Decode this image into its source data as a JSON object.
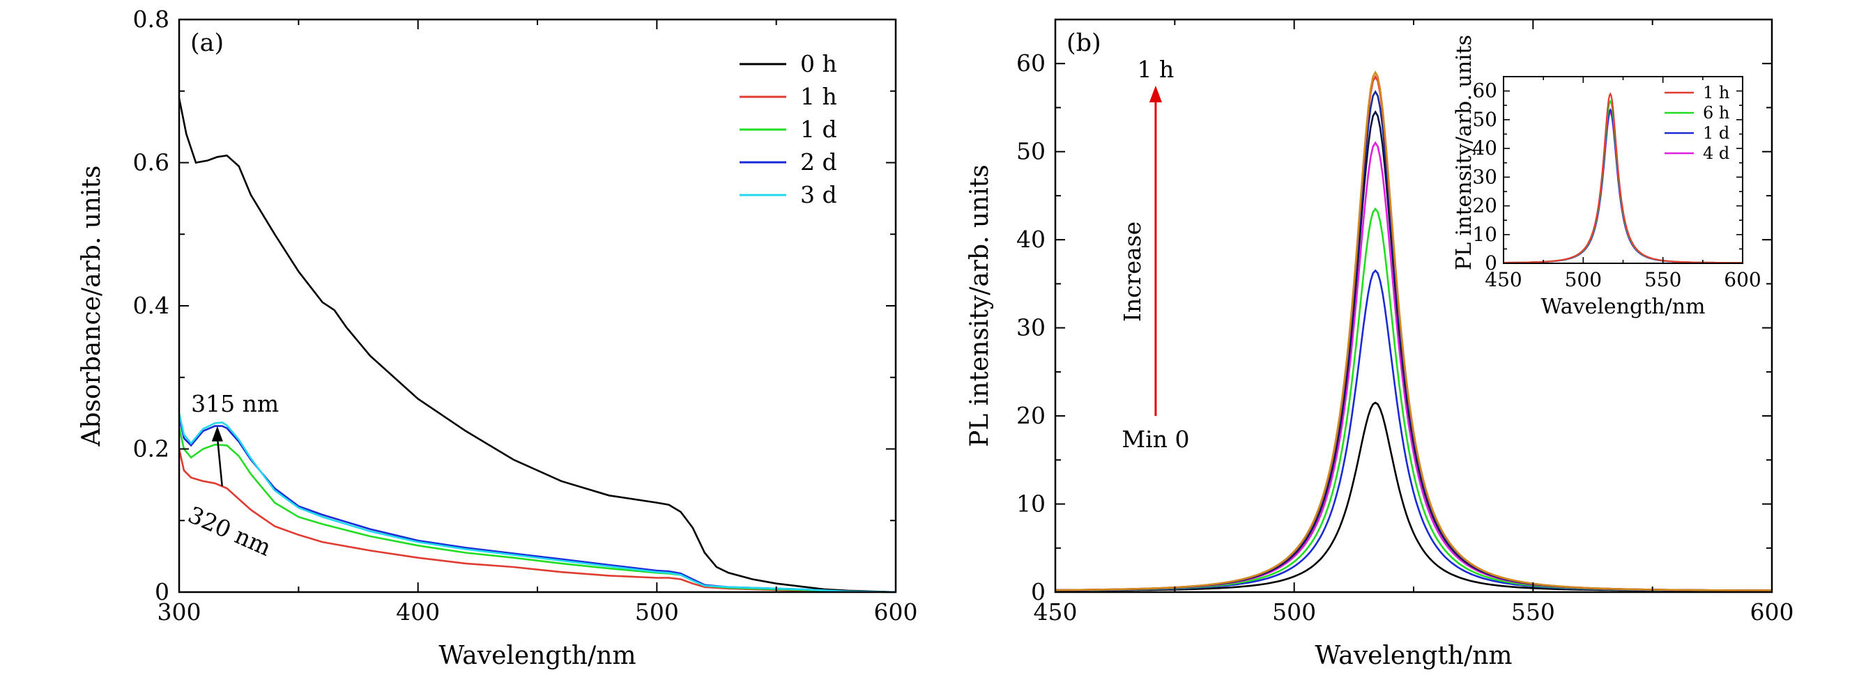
{
  "chart_data": [
    {
      "panel_label": "(a)",
      "type": "line",
      "xlabel": "Wavelength/nm",
      "ylabel": "Absorbance/arb. units",
      "xlim": [
        300,
        600
      ],
      "ylim": [
        0,
        0.8
      ],
      "xticks": [
        300,
        400,
        500,
        600
      ],
      "yticks": [
        0,
        0.2,
        0.4,
        0.6,
        0.8
      ],
      "ytick_labels": [
        "0",
        "0.2",
        "0.4",
        "0.6",
        "0.8"
      ],
      "legend_position": "top-right",
      "series": [
        {
          "name": "0 h",
          "color": "#000000",
          "x": [
            300,
            303,
            307,
            312,
            316,
            320,
            325,
            330,
            340,
            350,
            360,
            365,
            370,
            380,
            400,
            420,
            440,
            460,
            480,
            500,
            505,
            510,
            515,
            520,
            525,
            530,
            540,
            550,
            560,
            570,
            580,
            600
          ],
          "y": [
            0.69,
            0.64,
            0.6,
            0.603,
            0.608,
            0.61,
            0.595,
            0.555,
            0.5,
            0.448,
            0.405,
            0.394,
            0.37,
            0.33,
            0.27,
            0.225,
            0.185,
            0.155,
            0.135,
            0.125,
            0.122,
            0.112,
            0.09,
            0.055,
            0.035,
            0.027,
            0.018,
            0.012,
            0.008,
            0.004,
            0.002,
            0.0
          ]
        },
        {
          "name": "1 h",
          "color": "#e03c31",
          "x": [
            300,
            302,
            305,
            310,
            315,
            320,
            330,
            340,
            350,
            360,
            380,
            400,
            420,
            440,
            460,
            480,
            500,
            505,
            510,
            515,
            520,
            530,
            540,
            550,
            560,
            580,
            600
          ],
          "y": [
            0.2,
            0.17,
            0.16,
            0.155,
            0.152,
            0.145,
            0.115,
            0.092,
            0.08,
            0.07,
            0.058,
            0.048,
            0.04,
            0.035,
            0.028,
            0.023,
            0.02,
            0.02,
            0.018,
            0.012,
            0.007,
            0.005,
            0.004,
            0.003,
            0.002,
            0.001,
            0.0
          ]
        },
        {
          "name": "1 d",
          "color": "#22dd22",
          "x": [
            300,
            302,
            305,
            310,
            315,
            320,
            325,
            330,
            340,
            350,
            360,
            380,
            400,
            420,
            440,
            460,
            480,
            500,
            505,
            510,
            515,
            520,
            530,
            540,
            550,
            560,
            580,
            600
          ],
          "y": [
            0.23,
            0.2,
            0.188,
            0.2,
            0.206,
            0.205,
            0.19,
            0.165,
            0.125,
            0.105,
            0.095,
            0.078,
            0.065,
            0.055,
            0.048,
            0.04,
            0.033,
            0.027,
            0.026,
            0.024,
            0.016,
            0.009,
            0.006,
            0.005,
            0.004,
            0.003,
            0.001,
            0.0
          ]
        },
        {
          "name": "2 d",
          "color": "#1a2ad6",
          "x": [
            300,
            302,
            305,
            310,
            315,
            318,
            320,
            325,
            330,
            340,
            350,
            360,
            380,
            400,
            420,
            440,
            460,
            480,
            500,
            505,
            510,
            515,
            520,
            530,
            540,
            550,
            560,
            580,
            600
          ],
          "y": [
            0.245,
            0.215,
            0.205,
            0.225,
            0.232,
            0.232,
            0.229,
            0.21,
            0.185,
            0.145,
            0.12,
            0.108,
            0.088,
            0.072,
            0.062,
            0.054,
            0.046,
            0.038,
            0.03,
            0.029,
            0.026,
            0.018,
            0.01,
            0.007,
            0.006,
            0.005,
            0.004,
            0.001,
            0.0
          ]
        },
        {
          "name": "3 d",
          "color": "#22d8ee",
          "x": [
            300,
            302,
            305,
            310,
            315,
            318,
            320,
            325,
            330,
            340,
            350,
            360,
            380,
            400,
            420,
            440,
            460,
            480,
            500,
            505,
            510,
            515,
            520,
            530,
            540,
            550,
            560,
            580,
            600
          ],
          "y": [
            0.25,
            0.22,
            0.208,
            0.228,
            0.236,
            0.237,
            0.233,
            0.213,
            0.187,
            0.142,
            0.118,
            0.105,
            0.085,
            0.07,
            0.06,
            0.052,
            0.044,
            0.036,
            0.028,
            0.027,
            0.024,
            0.016,
            0.009,
            0.007,
            0.006,
            0.005,
            0.004,
            0.001,
            0.0
          ]
        }
      ],
      "annotations": [
        {
          "text": "315 nm",
          "x": 305,
          "y": 0.252
        },
        {
          "text": "320 nm",
          "x": 303,
          "y": 0.1
        }
      ],
      "arrow": {
        "x1": 318,
        "y1": 0.148,
        "x2": 316,
        "y2": 0.232
      }
    },
    {
      "panel_label": "(b)",
      "type": "line",
      "xlabel": "Wavelength/nm",
      "ylabel": "PL intensity/arb. units",
      "xlim": [
        450,
        600
      ],
      "ylim": [
        0,
        65
      ],
      "xticks": [
        450,
        500,
        550,
        600
      ],
      "yticks": [
        0,
        10,
        20,
        30,
        40,
        50,
        60
      ],
      "peak_center": 517,
      "series": [
        {
          "name": "",
          "color": "#000000",
          "peak": 21.5
        },
        {
          "name": "",
          "color": "#1a2ad6",
          "peak": 36.5
        },
        {
          "name": "",
          "color": "#22dd22",
          "peak": 43.5
        },
        {
          "name": "",
          "color": "#e020e0",
          "peak": 51
        },
        {
          "name": "",
          "color": "#0b1240",
          "peak": 54.5
        },
        {
          "name": "",
          "color": "#1a2a9a",
          "peak": 56.8
        },
        {
          "name": "",
          "color": "#e03c31",
          "peak": 58.5
        },
        {
          "name": "",
          "color": "#d08a20",
          "peak": 59
        }
      ],
      "annotations": {
        "top": "1 h",
        "side": "Increase",
        "bottom": "Min 0"
      },
      "arrow": {
        "x": 471,
        "y1": 20,
        "y2": 57.5,
        "color": "#e00000"
      },
      "inset": {
        "type": "line",
        "xlabel": "Wavelength/nm",
        "ylabel": "PL intensity/arb. units",
        "xlim": [
          450,
          600
        ],
        "ylim": [
          0,
          65
        ],
        "xticks": [
          450,
          500,
          550,
          600
        ],
        "yticks": [
          0,
          10,
          20,
          30,
          40,
          50,
          60
        ],
        "legend_position": "top-right",
        "series": [
          {
            "name": "1 h",
            "color": "#e03c31",
            "peak": 59
          },
          {
            "name": "6 h",
            "color": "#22dd22",
            "peak": 56.5
          },
          {
            "name": "1 d",
            "color": "#1a2ad6",
            "peak": 53.5
          },
          {
            "name": "4 d",
            "color": "#e020e0",
            "peak": 52.5
          }
        ]
      }
    }
  ]
}
